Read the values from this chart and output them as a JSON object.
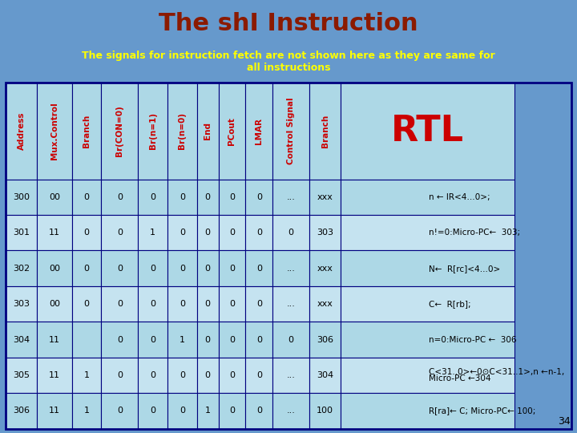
{
  "title": "The shI Instruction",
  "subtitle": "The signals for instruction fetch are not shown here as they are same for\nall instructions",
  "title_color": "#8B1A00",
  "subtitle_color": "#FFFF00",
  "bg_color": "#6699CC",
  "table_bg": "#ADD8E6",
  "table_alt_bg": "#C5E3F0",
  "header_color": "#CC0000",
  "data_color": "#000000",
  "rtl_color": "#CC0000",
  "border_color": "#000080",
  "col_headers": [
    "Address",
    "Mux.Control",
    "Branch",
    "Br(CON=0)",
    "Br(n=1)",
    "Br(n=0)",
    "End",
    "PCout",
    "LMAR",
    "Control Signal",
    "Branch",
    "RTL"
  ],
  "rows": [
    [
      "300",
      "00",
      "0",
      "0",
      "0",
      "0",
      "0",
      "0",
      "0",
      "...",
      "xxx",
      "n ← IR<4…0>;"
    ],
    [
      "301",
      "11",
      "0",
      "0",
      "1",
      "0",
      "0",
      "0",
      "0",
      "0",
      "303",
      "n!=0:Micro-PC←  303;"
    ],
    [
      "302",
      "00",
      "0",
      "0",
      "0",
      "0",
      "0",
      "0",
      "0",
      "...",
      "xxx",
      "N←  R[rc]<4…0>"
    ],
    [
      "303",
      "00",
      "0",
      "0",
      "0",
      "0",
      "0",
      "0",
      "0",
      "...",
      "xxx",
      "C←  R[rb];"
    ],
    [
      "304",
      "11",
      "",
      "0",
      "0",
      "1",
      "0",
      "0",
      "0",
      "0",
      "306",
      "n=0:Micro-PC ←  306"
    ],
    [
      "305",
      "11",
      "1",
      "0",
      "0",
      "0",
      "0",
      "0",
      "0",
      "...",
      "304",
      "C<31..0>←0⊙C<31..1>,n ←n-1,\nMicro-PC ←304"
    ],
    [
      "306",
      "11",
      "1",
      "0",
      "0",
      "0",
      "1",
      "0",
      "0",
      "...",
      "100",
      "R[ra]← C; Micro-PC← 100;"
    ]
  ]
}
